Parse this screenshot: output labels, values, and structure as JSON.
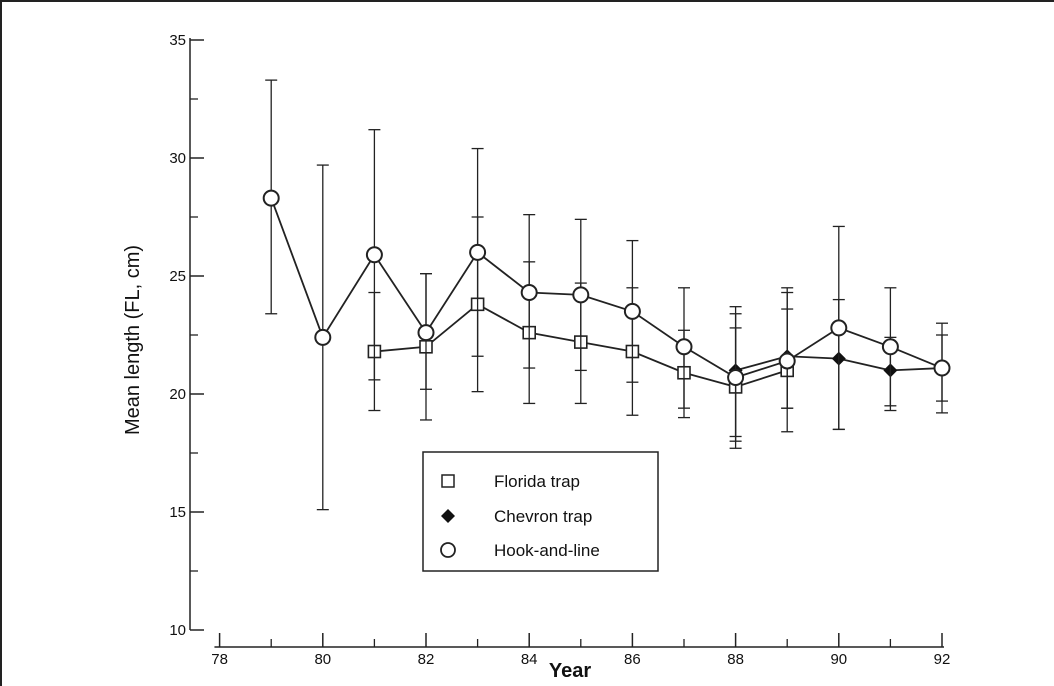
{
  "chart_data": {
    "type": "line",
    "title": "",
    "xlabel": "Year",
    "ylabel": "Mean length (FL, cm)",
    "xlim": [
      77,
      92
    ],
    "ylim": [
      10,
      35
    ],
    "x_ticks": [
      "78",
      "80",
      "82",
      "84",
      "86",
      "88",
      "90",
      "92"
    ],
    "x_tick_values": [
      78,
      80,
      82,
      84,
      86,
      88,
      90,
      92
    ],
    "y_ticks": [
      "10",
      "15",
      "20",
      "25",
      "30",
      "35"
    ],
    "y_tick_values": [
      10,
      15,
      20,
      25,
      30,
      35
    ],
    "grid": false,
    "legend_position": "bottom-center",
    "series": [
      {
        "name": "Florida trap",
        "marker": "square-open",
        "x": [
          81,
          82,
          83,
          84,
          85,
          86,
          87,
          88,
          89
        ],
        "y": [
          21.8,
          22.0,
          23.8,
          22.6,
          22.2,
          21.8,
          20.9,
          20.3,
          21.0
        ],
        "err_low": [
          19.3,
          18.9,
          20.1,
          19.6,
          19.6,
          19.1,
          19.0,
          17.7,
          18.4
        ],
        "err_high": [
          24.3,
          25.1,
          27.5,
          25.6,
          24.7,
          24.5,
          22.7,
          22.8,
          23.6
        ]
      },
      {
        "name": "Chevron trap",
        "marker": "diamond-filled",
        "x": [
          88,
          89,
          90,
          91,
          92
        ],
        "y": [
          21.0,
          21.6,
          21.5,
          21.0,
          21.1
        ],
        "err_low": [
          18.0,
          19.4,
          18.5,
          19.5,
          19.7
        ],
        "err_high": [
          23.4,
          24.5,
          24.0,
          22.4,
          22.5
        ]
      },
      {
        "name": "Hook-and-line",
        "marker": "circle-open",
        "x": [
          79,
          80,
          81,
          82,
          83,
          84,
          85,
          86,
          87,
          88,
          89,
          90,
          91,
          92
        ],
        "y": [
          28.3,
          22.4,
          25.9,
          22.6,
          26.0,
          24.3,
          24.2,
          23.5,
          22.0,
          20.7,
          21.4,
          22.8,
          22.0,
          21.1
        ],
        "err_low": [
          23.4,
          15.1,
          20.6,
          20.2,
          21.6,
          21.1,
          21.0,
          20.5,
          19.4,
          18.2,
          19.4,
          18.5,
          19.3,
          19.2
        ],
        "err_high": [
          33.3,
          29.7,
          31.2,
          25.1,
          30.4,
          27.6,
          27.4,
          26.5,
          24.5,
          23.7,
          24.3,
          27.1,
          24.5,
          23.0
        ]
      }
    ]
  },
  "legend": {
    "items": [
      {
        "label": "Florida trap",
        "marker": "square-open"
      },
      {
        "label": "Chevron trap",
        "marker": "diamond-filled"
      },
      {
        "label": "Hook-and-line",
        "marker": "circle-open"
      }
    ]
  }
}
